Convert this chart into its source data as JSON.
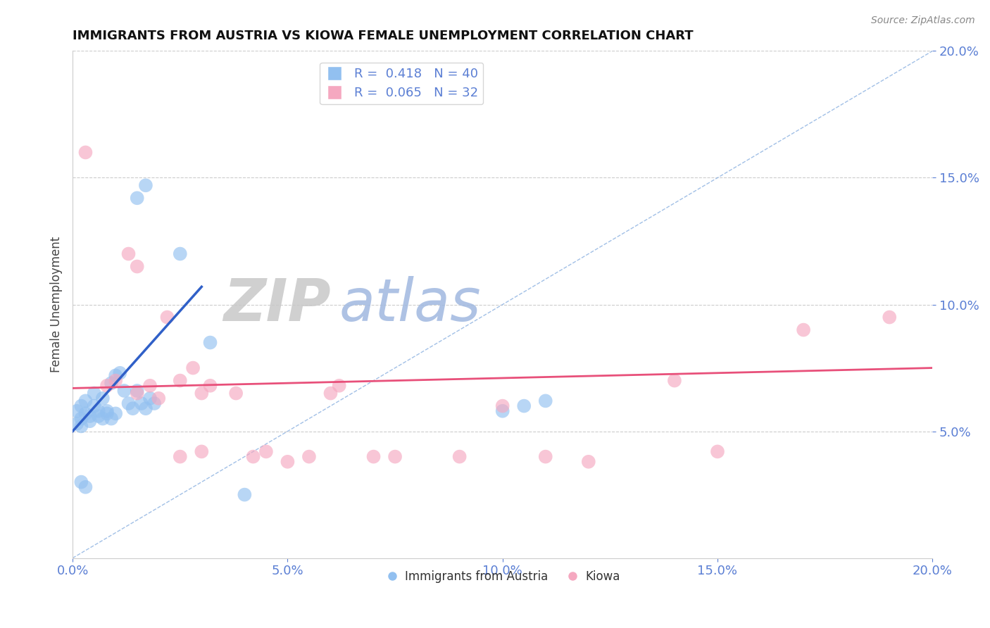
{
  "title": "IMMIGRANTS FROM AUSTRIA VS KIOWA FEMALE UNEMPLOYMENT CORRELATION CHART",
  "source_text": "Source: ZipAtlas.com",
  "ylabel": "Female Unemployment",
  "xlim": [
    0,
    0.2
  ],
  "ylim": [
    0,
    0.2
  ],
  "xticks": [
    0.0,
    0.05,
    0.1,
    0.15,
    0.2
  ],
  "yticks_right": [
    0.05,
    0.1,
    0.15,
    0.2
  ],
  "austria_color": "#92c0f0",
  "kiowa_color": "#f5a8c0",
  "austria_line_color": "#3060c8",
  "kiowa_line_color": "#e8507a",
  "diag_line_color": "#8ab0e0",
  "legend_border_color": "#cccccc",
  "austria_R": "0.418",
  "austria_N": "40",
  "kiowa_R": "0.065",
  "kiowa_N": "32",
  "legend_label_austria": "Immigrants from Austria",
  "legend_label_kiowa": "Kiowa",
  "axis_tick_color": "#5b7fd4",
  "watermark_zip": "ZIP",
  "watermark_atlas": "atlas",
  "watermark_zip_color": "#c8c8c8",
  "watermark_atlas_color": "#a0b8e0",
  "austria_scatter": [
    [
      0.001,
      0.058
    ],
    [
      0.002,
      0.06
    ],
    [
      0.003,
      0.062
    ],
    [
      0.004,
      0.056
    ],
    [
      0.005,
      0.065
    ],
    [
      0.005,
      0.06
    ],
    [
      0.006,
      0.058
    ],
    [
      0.007,
      0.063
    ],
    [
      0.008,
      0.057
    ],
    [
      0.009,
      0.069
    ],
    [
      0.01,
      0.072
    ],
    [
      0.011,
      0.073
    ],
    [
      0.012,
      0.066
    ],
    [
      0.013,
      0.061
    ],
    [
      0.014,
      0.059
    ],
    [
      0.015,
      0.066
    ],
    [
      0.016,
      0.061
    ],
    [
      0.017,
      0.059
    ],
    [
      0.018,
      0.063
    ],
    [
      0.019,
      0.061
    ],
    [
      0.002,
      0.055
    ],
    [
      0.003,
      0.057
    ],
    [
      0.004,
      0.054
    ],
    [
      0.006,
      0.056
    ],
    [
      0.007,
      0.055
    ],
    [
      0.008,
      0.058
    ],
    [
      0.009,
      0.055
    ],
    [
      0.01,
      0.057
    ],
    [
      0.001,
      0.053
    ],
    [
      0.002,
      0.052
    ],
    [
      0.015,
      0.142
    ],
    [
      0.017,
      0.147
    ],
    [
      0.025,
      0.12
    ],
    [
      0.032,
      0.085
    ],
    [
      0.04,
      0.025
    ],
    [
      0.002,
      0.03
    ],
    [
      0.003,
      0.028
    ],
    [
      0.1,
      0.058
    ],
    [
      0.105,
      0.06
    ],
    [
      0.11,
      0.062
    ]
  ],
  "kiowa_scatter": [
    [
      0.003,
      0.16
    ],
    [
      0.013,
      0.12
    ],
    [
      0.015,
      0.115
    ],
    [
      0.022,
      0.095
    ],
    [
      0.018,
      0.068
    ],
    [
      0.025,
      0.07
    ],
    [
      0.028,
      0.075
    ],
    [
      0.03,
      0.065
    ],
    [
      0.032,
      0.068
    ],
    [
      0.038,
      0.065
    ],
    [
      0.042,
      0.04
    ],
    [
      0.045,
      0.042
    ],
    [
      0.05,
      0.038
    ],
    [
      0.055,
      0.04
    ],
    [
      0.06,
      0.065
    ],
    [
      0.062,
      0.068
    ],
    [
      0.07,
      0.04
    ],
    [
      0.075,
      0.04
    ],
    [
      0.09,
      0.04
    ],
    [
      0.1,
      0.06
    ],
    [
      0.11,
      0.04
    ],
    [
      0.12,
      0.038
    ],
    [
      0.14,
      0.07
    ],
    [
      0.15,
      0.042
    ],
    [
      0.17,
      0.09
    ],
    [
      0.19,
      0.095
    ],
    [
      0.008,
      0.068
    ],
    [
      0.01,
      0.07
    ],
    [
      0.015,
      0.065
    ],
    [
      0.02,
      0.063
    ],
    [
      0.025,
      0.04
    ],
    [
      0.03,
      0.042
    ]
  ],
  "background_color": "#ffffff",
  "grid_color": "#cccccc"
}
